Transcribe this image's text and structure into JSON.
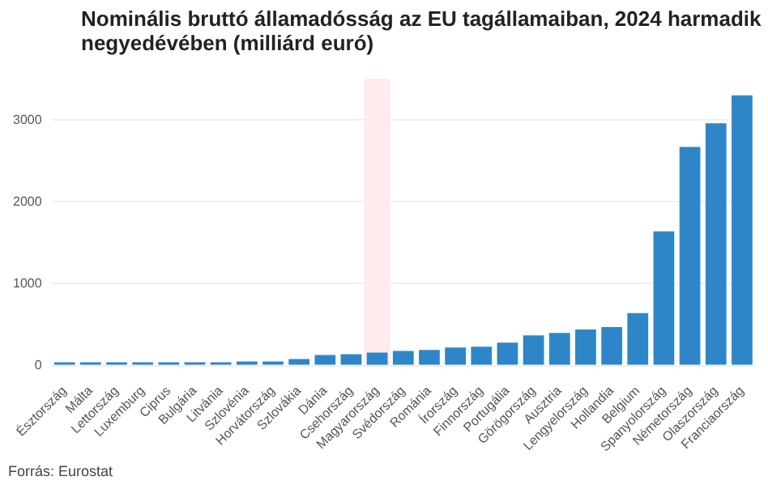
{
  "chart_data": {
    "type": "bar",
    "title": "Nominális bruttó államadósság az EU tagállamaiban, 2024 harmadik negyedévében (milliárd euró)",
    "categories": [
      "Észtország",
      "Málta",
      "Lettország",
      "Luxemburg",
      "Ciprus",
      "Bulgária",
      "Litvánia",
      "Szlovénia",
      "Horvátország",
      "Szlovákia",
      "Dánia",
      "Csehország",
      "Magyarország",
      "Svédország",
      "Románia",
      "Írország",
      "Finnország",
      "Portugália",
      "Görögország",
      "Ausztria",
      "Lengyelország",
      "Hollandia",
      "Belgium",
      "Spanyolország",
      "Németország",
      "Olaszország",
      "Franciaország"
    ],
    "values": [
      10,
      10,
      20,
      20,
      20,
      30,
      30,
      50,
      50,
      80,
      130,
      140,
      160,
      180,
      190,
      220,
      230,
      280,
      370,
      400,
      440,
      470,
      640,
      1640,
      2670,
      2960,
      3300
    ],
    "color": "#2e86c8",
    "ylim": [
      0,
      3500
    ],
    "yticks": [
      0,
      1000,
      2000,
      3000
    ],
    "grid": "y",
    "legend": false,
    "bands": [
      {
        "axis": "x",
        "from": "Magyarország",
        "to": "Magyarország",
        "color": "#fdeceb"
      }
    ],
    "annotations": [
      "Forrás: Eurostat"
    ]
  }
}
